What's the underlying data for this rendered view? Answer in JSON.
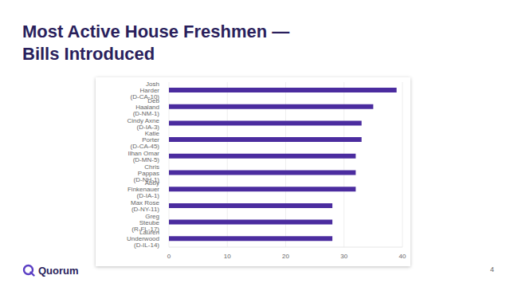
{
  "chart_data": {
    "type": "bar",
    "title": "Most Active House Freshmen — Bills Introduced",
    "orientation": "horizontal",
    "categories": [
      "Josh Harder (D-CA-10)",
      "Deb Haaland (D-NM-1)",
      "Cindy Axne (D-IA-3)",
      "Katie Porter (D-CA-45)",
      "Ilhan Omar (D-MN-5)",
      "Chris Pappas (D-NH-1)",
      "Abby Finkenauer (D-IA-1)",
      "Max Rose (D-NY-11)",
      "Greg Steube (R-FL-17)",
      "Lauren Underwood (D-IL-14)"
    ],
    "values": [
      39,
      35,
      33,
      33,
      32,
      32,
      32,
      28,
      28,
      28
    ],
    "color": "#4b2c9f",
    "xlim": [
      0,
      40
    ],
    "xticks": [
      0,
      10,
      20,
      30,
      40
    ],
    "grid": true
  },
  "footer": {
    "logo": "Quorum",
    "page": 4
  }
}
